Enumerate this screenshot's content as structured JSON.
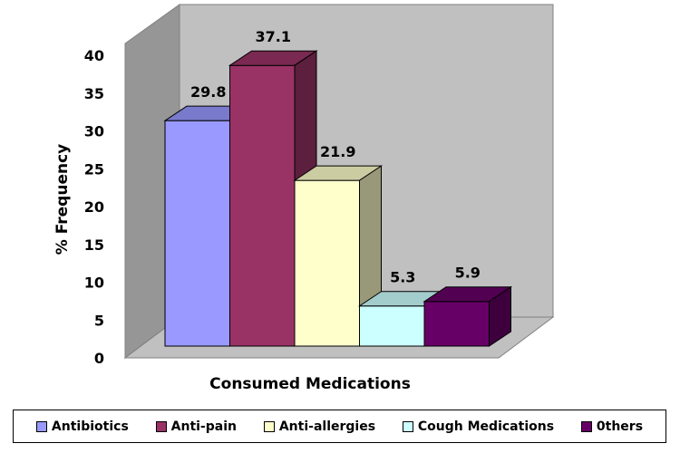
{
  "chart_data": {
    "type": "bar",
    "categories": [
      "Antibiotics",
      "Anti-pain",
      "Anti-allergies",
      "Cough Medications",
      "Others"
    ],
    "values": [
      29.8,
      37.1,
      21.9,
      5.3,
      5.9
    ],
    "data_labels": [
      "29.8",
      "37.1",
      "21.9",
      "5.3",
      "5.9"
    ],
    "legend_labels": [
      "Antibiotics",
      "Anti-pain",
      "Anti-allergies",
      "Cough Medications",
      "0thers"
    ],
    "colors": [
      "#9999ff",
      "#993366",
      "#ffffcc",
      "#ccffff",
      "#660066"
    ],
    "xlabel": "Consumed Medications",
    "ylabel": "% Frequency",
    "ylim": [
      0,
      40
    ],
    "yticks": [
      "0",
      "5",
      "10",
      "15",
      "20",
      "25",
      "30",
      "35",
      "40"
    ],
    "three_d": true,
    "legend_position": "bottom",
    "grid": false,
    "wall_color": "#c0c0c0"
  }
}
